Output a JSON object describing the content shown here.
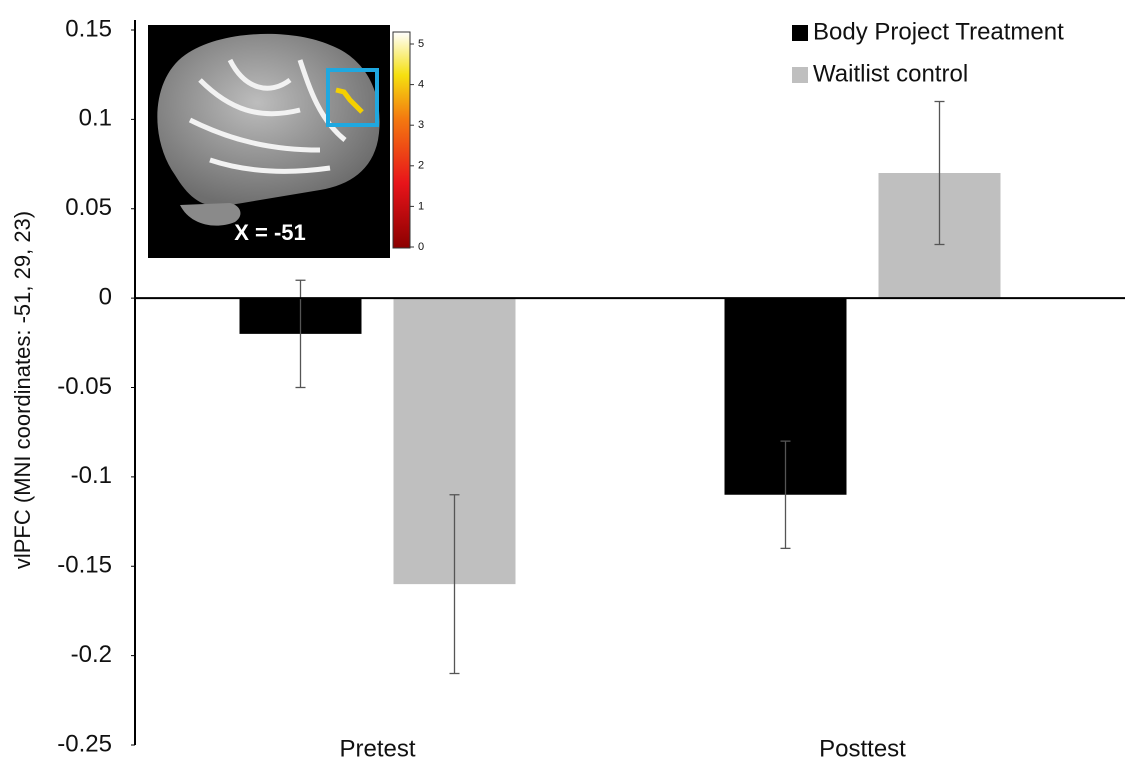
{
  "chart_data": {
    "type": "bar",
    "y_label": "vlPFC (MNI coordinates: -51, 29, 23)",
    "categories": [
      "Pretest",
      "Posttest"
    ],
    "series": [
      {
        "name": "Body Project Treatment",
        "color": "#000000",
        "values": [
          -0.02,
          -0.11
        ],
        "errors": [
          0.03,
          0.03
        ]
      },
      {
        "name": "Waitlist control",
        "color": "#bfbfbf",
        "values": [
          -0.16,
          0.07
        ],
        "errors": [
          0.05,
          0.04
        ]
      }
    ],
    "ylim": [
      -0.25,
      0.15
    ],
    "yticks": [
      0.15,
      0.1,
      0.05,
      0,
      -0.05,
      -0.1,
      -0.15,
      -0.2,
      -0.25
    ],
    "grid": false,
    "legend": "top-right",
    "inset": {
      "label": "X = -51",
      "colorbar_ticks": [
        0,
        1,
        2,
        3,
        4,
        5
      ]
    }
  }
}
